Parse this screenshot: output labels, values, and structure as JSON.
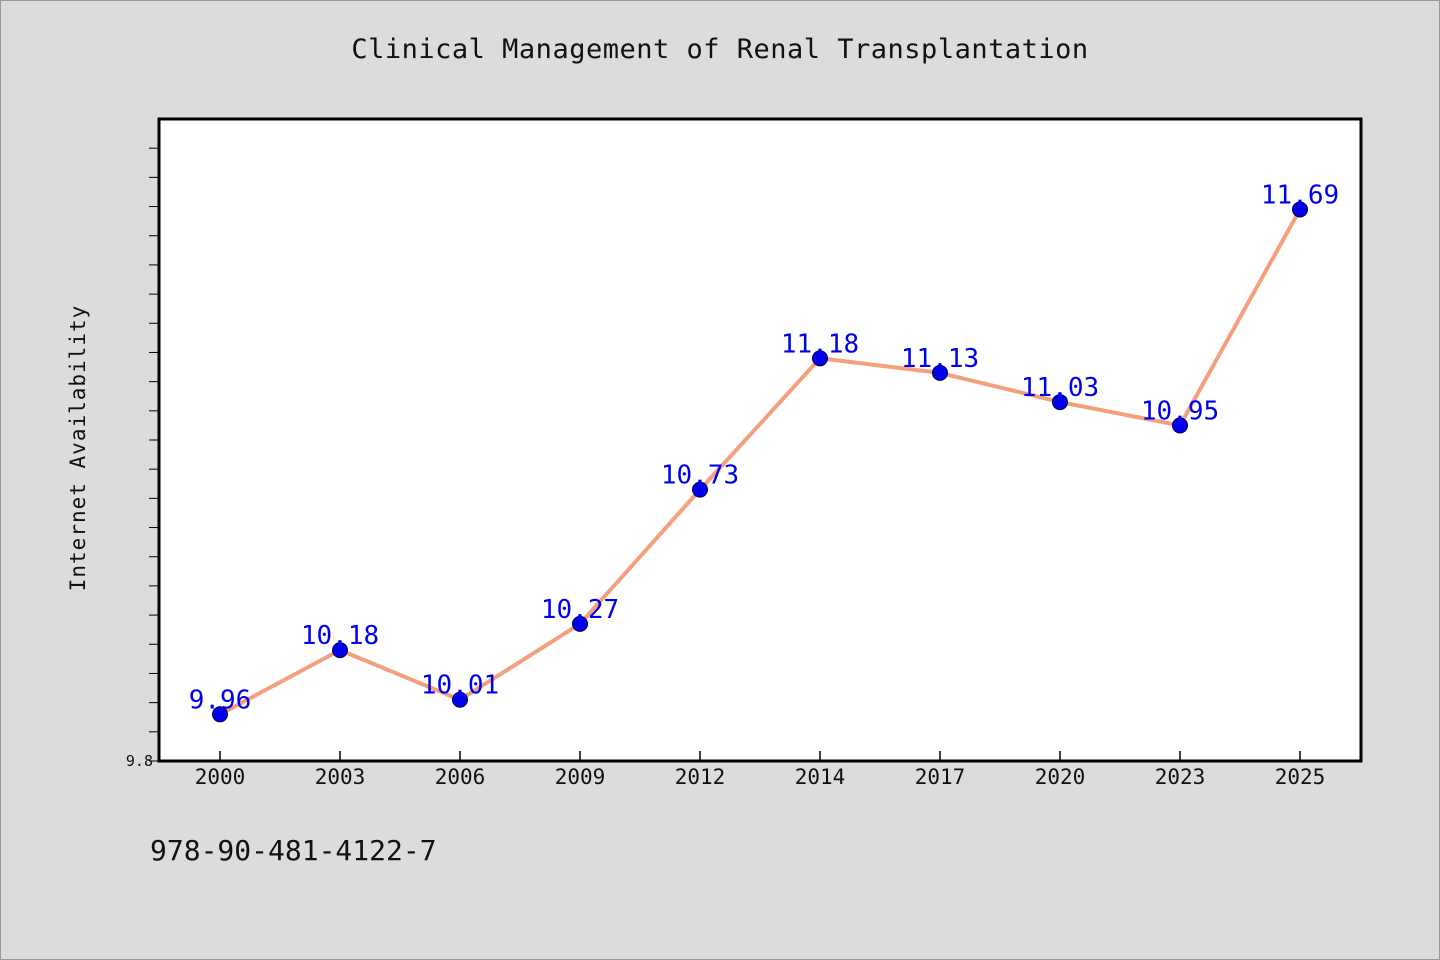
{
  "chart_data": {
    "type": "line",
    "title": "Clinical Management of Renal Transplantation",
    "xlabel": "",
    "ylabel": "Internet Availability",
    "categories": [
      "2000",
      "2003",
      "2006",
      "2009",
      "2012",
      "2014",
      "2017",
      "2020",
      "2023",
      "2025"
    ],
    "series": [
      {
        "values": [
          9.96,
          10.18,
          10.01,
          10.27,
          10.73,
          11.18,
          11.13,
          11.03,
          10.95,
          11.69
        ]
      }
    ],
    "data_labels": [
      "9.96",
      "10.18",
      "10.01",
      "10.27",
      "10.73",
      "11.18",
      "11.13",
      "11.03",
      "10.95",
      "11.69"
    ],
    "ylim": [
      9.8,
      12.0
    ],
    "y_tick_labels": [
      "9.8"
    ],
    "grid": false,
    "legend": "none",
    "colors": {
      "line": "#f4a07e",
      "marker": "#0000ee",
      "label": "#0000ee",
      "plot_bg": "#ffffff",
      "page_bg": "#dcdcdc"
    }
  },
  "footer": {
    "isbn": "978-90-481-4122-7"
  }
}
